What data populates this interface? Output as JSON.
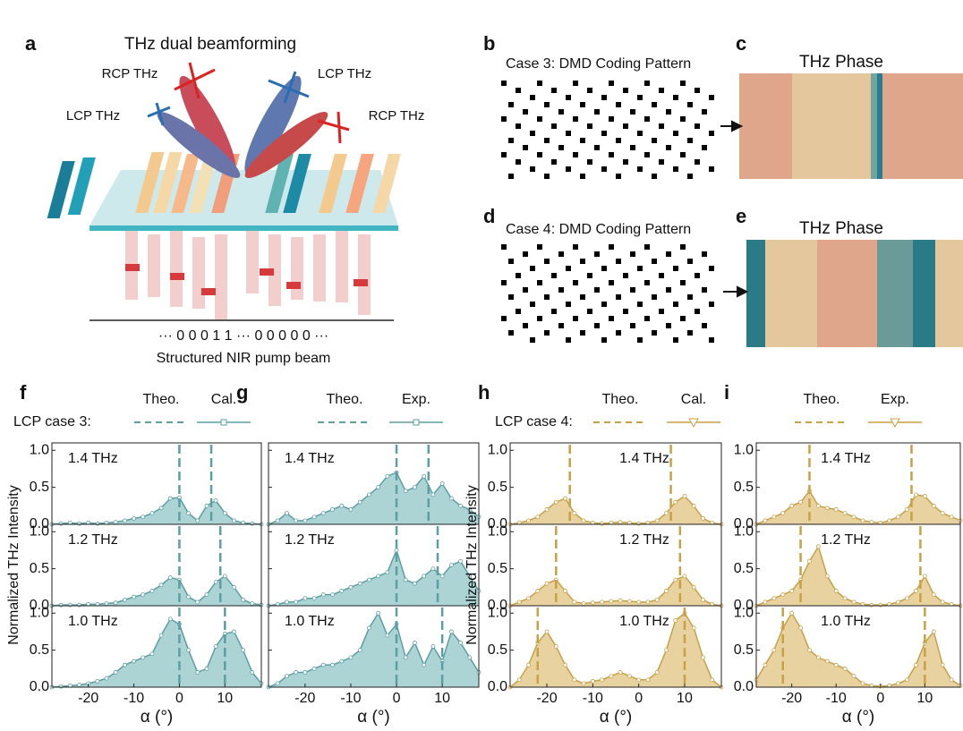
{
  "illustration": {
    "label": "a",
    "title": "THz dual beamforming",
    "beams": [
      "RCP THz",
      "LCP THz",
      "LCP THz",
      "RCP THz"
    ],
    "code": "··· 0 0 0 1 1 ··· 0 0 0 0 0 ···",
    "caption": "Structured NIR pump beam"
  },
  "patterns": [
    {
      "label": "b",
      "title": "Case 3: DMD Coding Pattern"
    },
    {
      "label": "d",
      "title": "Case 4: DMD Coding Pattern"
    }
  ],
  "phases": [
    {
      "label": "c",
      "title": "THz Phase"
    },
    {
      "label": "e",
      "title": "THz Phase"
    }
  ],
  "chart_data": [
    {
      "type": "area",
      "panel": "f",
      "legend_title": "LCP case 3:",
      "theory_label": "Theo.",
      "marker_label": "Cal.",
      "marker": "square",
      "xlabel": "α (°)",
      "ylabel": "Normalized THz Intensity",
      "color": "#5b9ea4",
      "fill_color": "#acd4d5",
      "xlim": [
        -28,
        18
      ],
      "xticks": [
        -20,
        -10,
        0,
        10
      ],
      "ylim": [
        0,
        1.1
      ],
      "yticks": [
        {
          "value": 0,
          "label": "0.0"
        },
        0.5,
        {
          "value": 1,
          "label": "1.0"
        }
      ],
      "x": [
        -28,
        -26,
        -24,
        -22,
        -20,
        -18,
        -16,
        -14,
        -12,
        -10,
        -8,
        -6,
        -4,
        -2,
        0,
        2,
        4,
        6,
        8,
        10,
        12,
        14,
        16,
        18
      ],
      "subplots": [
        {
          "label": "1.4 THz",
          "theory": [
            0,
            7
          ],
          "values": [
            0,
            0.01,
            0.02,
            0.01,
            0.02,
            0.01,
            0.02,
            0.03,
            0.05,
            0.08,
            0.1,
            0.15,
            0.22,
            0.35,
            0.36,
            0.15,
            0.05,
            0.25,
            0.32,
            0.15,
            0.05,
            0.02,
            0.01,
            0
          ]
        },
        {
          "label": "1.2 THz",
          "theory": [
            0,
            9
          ],
          "values": [
            0,
            0.01,
            0.01,
            0.01,
            0.02,
            0.02,
            0.03,
            0.04,
            0.08,
            0.12,
            0.15,
            0.2,
            0.28,
            0.38,
            0.35,
            0.12,
            0.05,
            0.15,
            0.32,
            0.4,
            0.25,
            0.08,
            0.03,
            0.01
          ]
        },
        {
          "label": "1.0 THz",
          "theory": [
            0,
            10
          ],
          "values": [
            0,
            0.01,
            0.02,
            0.03,
            0.05,
            0.08,
            0.12,
            0.2,
            0.3,
            0.35,
            0.4,
            0.45,
            0.7,
            0.92,
            0.85,
            0.5,
            0.2,
            0.25,
            0.55,
            0.72,
            0.75,
            0.5,
            0.2,
            0.05
          ]
        }
      ]
    },
    {
      "type": "area",
      "panel": "g",
      "theory_label": "Theo.",
      "marker_label": "Exp.",
      "marker": "square",
      "xlabel": "α (°)",
      "color": "#5b9ea4",
      "fill_color": "#acd4d5",
      "xlim": [
        -28,
        18
      ],
      "xticks": [
        -20,
        -10,
        0,
        10
      ],
      "ylim": [
        0,
        1.1
      ],
      "yticks": [
        0,
        0.5,
        1
      ],
      "ytick_labels": false,
      "x": [
        -28,
        -26,
        -24,
        -22,
        -20,
        -18,
        -16,
        -14,
        -12,
        -10,
        -8,
        -6,
        -4,
        -2,
        0,
        2,
        4,
        6,
        8,
        10,
        12,
        14,
        16,
        18
      ],
      "subplots": [
        {
          "label": "1.4 THz",
          "theory": [
            0,
            7
          ],
          "values": [
            0,
            0.05,
            0.15,
            0.05,
            0.05,
            0.1,
            0.15,
            0.2,
            0.25,
            0.2,
            0.3,
            0.4,
            0.5,
            0.65,
            0.7,
            0.45,
            0.5,
            0.65,
            0.4,
            0.55,
            0.35,
            0.25,
            0.2,
            0.1
          ]
        },
        {
          "label": "1.2 THz",
          "theory": [
            0,
            9
          ],
          "values": [
            0,
            0.02,
            0.05,
            0.05,
            0.1,
            0.1,
            0.15,
            0.15,
            0.2,
            0.25,
            0.3,
            0.35,
            0.4,
            0.45,
            0.75,
            0.35,
            0.3,
            0.4,
            0.5,
            0.4,
            0.55,
            0.6,
            0.4,
            0.2
          ]
        },
        {
          "label": "1.0 THz",
          "theory": [
            0,
            10
          ],
          "values": [
            0,
            0.05,
            0.15,
            0.2,
            0.2,
            0.25,
            0.3,
            0.3,
            0.35,
            0.4,
            0.5,
            0.8,
            1,
            0.7,
            0.85,
            0.4,
            0.6,
            0.3,
            0.55,
            0.35,
            0.75,
            0.6,
            0.4,
            0.2
          ]
        }
      ]
    },
    {
      "type": "area",
      "panel": "h",
      "legend_title": "LCP case 4:",
      "theory_label": "Theo.",
      "marker_label": "Cal.",
      "marker": "triangle",
      "xlabel": "α (°)",
      "ylabel": "Normalized THz Intensity",
      "color": "#c8a046",
      "fill_color": "#e8d3a0",
      "xlim": [
        -28,
        18
      ],
      "xticks": [
        -20,
        -10,
        0,
        10
      ],
      "ylim": [
        0,
        1.1
      ],
      "yticks": [
        {
          "value": 0,
          "label": "0.0"
        },
        0.5,
        {
          "value": 1,
          "label": "1.0"
        }
      ],
      "x": [
        -28,
        -26,
        -24,
        -22,
        -20,
        -18,
        -16,
        -14,
        -12,
        -10,
        -8,
        -6,
        -4,
        -2,
        0,
        2,
        4,
        6,
        8,
        10,
        12,
        14,
        16,
        18
      ],
      "subplots": [
        {
          "label": "1.4 THz",
          "theory": [
            -15,
            7
          ],
          "values": [
            0,
            0.02,
            0.05,
            0.1,
            0.2,
            0.3,
            0.35,
            0.15,
            0.05,
            0.02,
            0.01,
            0.02,
            0.03,
            0.02,
            0.01,
            0.02,
            0.05,
            0.15,
            0.3,
            0.38,
            0.25,
            0.08,
            0.02,
            0
          ]
        },
        {
          "label": "1.2 THz",
          "theory": [
            -18,
            9
          ],
          "values": [
            0,
            0.05,
            0.1,
            0.2,
            0.3,
            0.35,
            0.2,
            0.05,
            0.03,
            0.04,
            0.05,
            0.06,
            0.07,
            0.06,
            0.05,
            0.05,
            0.08,
            0.2,
            0.35,
            0.4,
            0.25,
            0.08,
            0.02,
            0
          ]
        },
        {
          "label": "1.0 THz",
          "theory": [
            -22,
            10
          ],
          "values": [
            0,
            0.1,
            0.3,
            0.6,
            0.75,
            0.55,
            0.3,
            0.1,
            0.05,
            0.08,
            0.1,
            0.15,
            0.2,
            0.15,
            0.1,
            0.1,
            0.2,
            0.5,
            0.9,
            1,
            0.8,
            0.4,
            0.1,
            0
          ]
        }
      ]
    },
    {
      "type": "area",
      "panel": "i",
      "theory_label": "Theo.",
      "marker_label": "Exp.",
      "marker": "triangle",
      "xlabel": "α (°)",
      "color": "#c8a046",
      "fill_color": "#e8d3a0",
      "xlim": [
        -28,
        18
      ],
      "xticks": [
        -20,
        -10,
        0,
        10
      ],
      "ylim": [
        0,
        1.1
      ],
      "yticks": [
        {
          "value": 0,
          "label": "0.0"
        },
        0.5,
        {
          "value": 1,
          "label": "1.0"
        }
      ],
      "x": [
        -28,
        -26,
        -24,
        -22,
        -20,
        -18,
        -16,
        -14,
        -12,
        -10,
        -8,
        -6,
        -4,
        -2,
        0,
        2,
        4,
        6,
        8,
        10,
        12,
        14,
        16,
        18
      ],
      "subplots": [
        {
          "label": "1.4 THz",
          "theory": [
            -16,
            7
          ],
          "values": [
            0,
            0.05,
            0.1,
            0.15,
            0.25,
            0.3,
            0.45,
            0.25,
            0.22,
            0.2,
            0.15,
            0.1,
            0.05,
            0.03,
            0.02,
            0.05,
            0.1,
            0.2,
            0.4,
            0.38,
            0.25,
            0.15,
            0.1,
            0.05
          ]
        },
        {
          "label": "1.2 THz",
          "theory": [
            -18,
            9
          ],
          "values": [
            0,
            0.05,
            0.1,
            0.15,
            0.2,
            0.35,
            0.6,
            0.8,
            0.4,
            0.2,
            0.1,
            0.05,
            0.02,
            0.01,
            0.01,
            0.02,
            0.05,
            0.1,
            0.2,
            0.4,
            0.15,
            0.05,
            0.02,
            0
          ]
        },
        {
          "label": "1.0 THz",
          "theory": [
            -22,
            10
          ],
          "values": [
            0.1,
            0.3,
            0.5,
            0.8,
            1,
            0.8,
            0.5,
            0.4,
            0.35,
            0.3,
            0.25,
            0.15,
            0.05,
            0.02,
            0.01,
            0.02,
            0.05,
            0.1,
            0.3,
            0.6,
            0.75,
            0.3,
            0.1,
            0.02
          ]
        }
      ]
    }
  ]
}
